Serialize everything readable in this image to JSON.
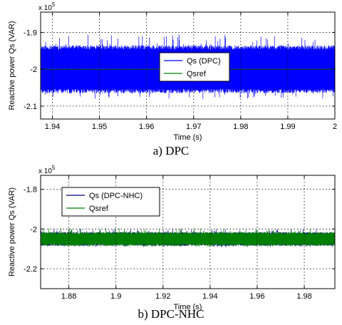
{
  "chart_data": [
    {
      "type": "line",
      "caption": "a) DPC",
      "xlabel": "Time (s)",
      "ylabel": "Reactive power Qs (VAR)",
      "exponent_label": "x 10",
      "exponent_power": "5",
      "xlim": [
        1.9375,
        2.0
      ],
      "ylim": [
        -2.135,
        -1.845
      ],
      "xticks": [
        1.94,
        1.95,
        1.96,
        1.97,
        1.98,
        1.99,
        2
      ],
      "xtick_labels": [
        "1.94",
        "1.95",
        "1.96",
        "1.97",
        "1.98",
        "1.99",
        "2"
      ],
      "yticks": [
        -1.9,
        -2.0,
        -2.1
      ],
      "ytick_labels": [
        "-1.9",
        "-2",
        "-2.1"
      ],
      "grid": true,
      "legend_position": "center",
      "series": [
        {
          "name": "Qs (DPC)",
          "color": "#0000ff",
          "style": "ripple",
          "center": -2.0,
          "band": [
            -2.065,
            -1.935
          ],
          "spike_range": [
            -2.08,
            -1.905
          ]
        },
        {
          "name": "Qsref",
          "color": "#008000",
          "style": "constant",
          "value": -2.0
        }
      ]
    },
    {
      "type": "line",
      "caption": "b) DPC-NHC",
      "xlabel": "Time (s)",
      "ylabel": "Reactive power Qs (VAR)",
      "exponent_label": "x 10",
      "exponent_power": "5",
      "xlim": [
        1.868,
        1.993
      ],
      "ylim": [
        -2.3,
        -1.73
      ],
      "xticks": [
        1.88,
        1.9,
        1.92,
        1.94,
        1.96,
        1.98
      ],
      "xtick_labels": [
        "1.88",
        "1.9",
        "1.92",
        "1.94",
        "1.96",
        "1.98"
      ],
      "yticks": [
        -1.8,
        -2.0,
        -2.2
      ],
      "ytick_labels": [
        "-1.8",
        "-2",
        "-2.2"
      ],
      "grid": true,
      "legend_position": "top-left",
      "series": [
        {
          "name": "Qs (DPC-NHC)",
          "color": "#000080",
          "style": "ripple",
          "center": -2.05,
          "band": [
            -2.085,
            -2.015
          ],
          "spike_range": [
            -2.09,
            -2.0
          ]
        },
        {
          "name": "Qsref",
          "color": "#008000",
          "style": "ripple",
          "center": -2.05,
          "band": [
            -2.085,
            -2.015
          ],
          "spike_range": [
            -2.09,
            -1.995
          ]
        }
      ]
    }
  ]
}
